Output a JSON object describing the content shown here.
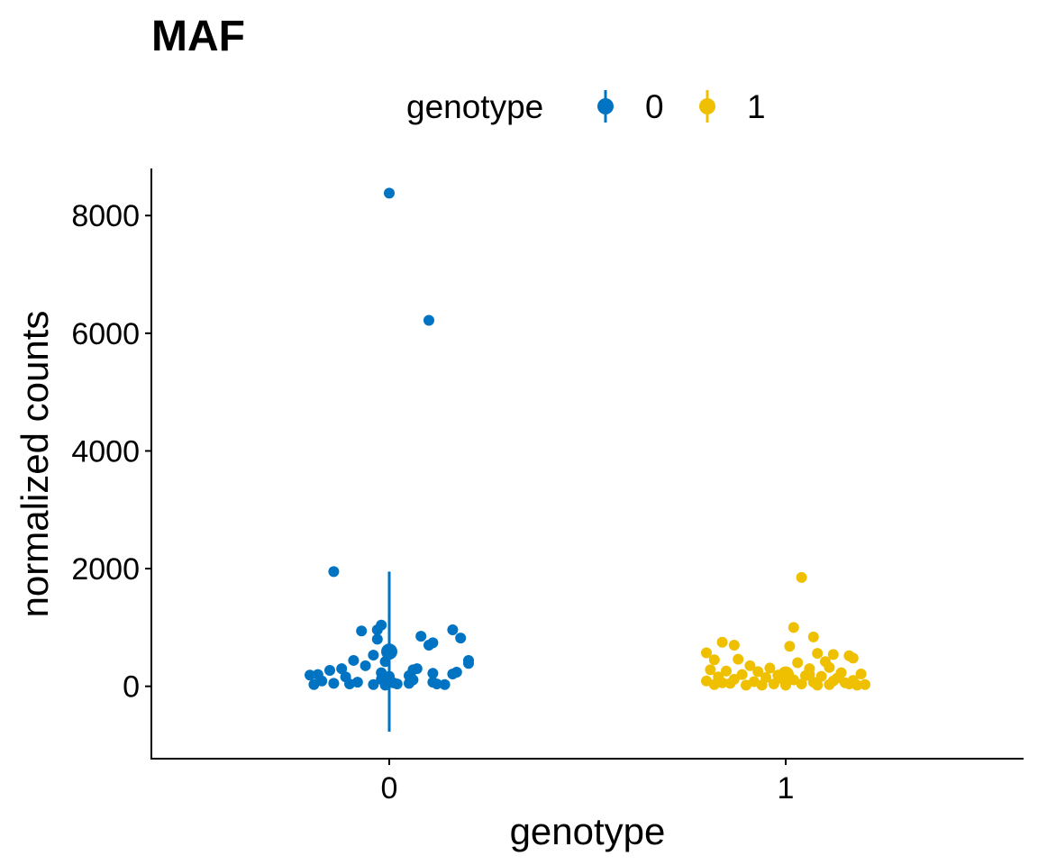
{
  "chart_data": {
    "type": "scatter",
    "title": "MAF",
    "xlabel": "genotype",
    "ylabel": "normalized counts",
    "categories": [
      "0",
      "1"
    ],
    "ylim": [
      -1230,
      8800
    ],
    "y_ticks": [
      0,
      2000,
      4000,
      6000,
      8000
    ],
    "y_tick_labels": [
      "0",
      "2000",
      "4000",
      "6000",
      "8000"
    ],
    "legend": {
      "title": "genotype",
      "position": "top",
      "entries": [
        "0",
        "1"
      ]
    },
    "grid": false,
    "colors": {
      "0": "#0073C2",
      "1": "#EFC000"
    },
    "series": [
      {
        "name": "0",
        "category": "0",
        "points": [
          {
            "dx": 0.0,
            "y": 8380
          },
          {
            "dx": 0.1,
            "y": 6220
          },
          {
            "dx": -0.14,
            "y": 1950
          },
          {
            "dx": -0.02,
            "y": 1040
          },
          {
            "dx": -0.07,
            "y": 940
          },
          {
            "dx": -0.03,
            "y": 960
          },
          {
            "dx": 0.16,
            "y": 960
          },
          {
            "dx": 0.08,
            "y": 850
          },
          {
            "dx": 0.18,
            "y": 820
          },
          {
            "dx": -0.03,
            "y": 800
          },
          {
            "dx": 0.11,
            "y": 740
          },
          {
            "dx": 0.1,
            "y": 700
          },
          {
            "dx": -0.04,
            "y": 530
          },
          {
            "dx": -0.09,
            "y": 440
          },
          {
            "dx": 0.2,
            "y": 440
          },
          {
            "dx": 0.2,
            "y": 390
          },
          {
            "dx": -0.01,
            "y": 420
          },
          {
            "dx": -0.06,
            "y": 350
          },
          {
            "dx": -0.12,
            "y": 300
          },
          {
            "dx": 0.07,
            "y": 300
          },
          {
            "dx": 0.06,
            "y": 280
          },
          {
            "dx": -0.15,
            "y": 270
          },
          {
            "dx": 0.17,
            "y": 240
          },
          {
            "dx": -0.02,
            "y": 230
          },
          {
            "dx": 0.16,
            "y": 210
          },
          {
            "dx": 0.11,
            "y": 220
          },
          {
            "dx": -0.18,
            "y": 200
          },
          {
            "dx": -0.2,
            "y": 190
          },
          {
            "dx": 0.05,
            "y": 180
          },
          {
            "dx": -0.11,
            "y": 160
          },
          {
            "dx": 0.0,
            "y": 170
          },
          {
            "dx": -0.02,
            "y": 120
          },
          {
            "dx": 0.06,
            "y": 110
          },
          {
            "dx": -0.17,
            "y": 90
          },
          {
            "dx": -0.08,
            "y": 70
          },
          {
            "dx": 0.01,
            "y": 60
          },
          {
            "dx": 0.11,
            "y": 70
          },
          {
            "dx": -0.14,
            "y": 50
          },
          {
            "dx": -0.19,
            "y": 30
          },
          {
            "dx": -0.1,
            "y": 40
          },
          {
            "dx": -0.04,
            "y": 30
          },
          {
            "dx": 0.02,
            "y": 40
          },
          {
            "dx": 0.05,
            "y": 50
          },
          {
            "dx": 0.12,
            "y": 40
          },
          {
            "dx": 0.14,
            "y": 30
          },
          {
            "dx": -0.01,
            "y": 20
          }
        ],
        "summary": {
          "mean": 590,
          "lower": -770,
          "upper": 1950
        }
      },
      {
        "name": "1",
        "category": "1",
        "points": [
          {
            "dx": 0.04,
            "y": 1850
          },
          {
            "dx": 0.02,
            "y": 1000
          },
          {
            "dx": 0.07,
            "y": 840
          },
          {
            "dx": -0.16,
            "y": 750
          },
          {
            "dx": -0.13,
            "y": 700
          },
          {
            "dx": 0.01,
            "y": 680
          },
          {
            "dx": -0.2,
            "y": 570
          },
          {
            "dx": 0.08,
            "y": 560
          },
          {
            "dx": 0.12,
            "y": 540
          },
          {
            "dx": 0.16,
            "y": 520
          },
          {
            "dx": 0.17,
            "y": 480
          },
          {
            "dx": -0.18,
            "y": 450
          },
          {
            "dx": -0.12,
            "y": 460
          },
          {
            "dx": 0.03,
            "y": 400
          },
          {
            "dx": 0.1,
            "y": 420
          },
          {
            "dx": -0.09,
            "y": 350
          },
          {
            "dx": 0.11,
            "y": 320
          },
          {
            "dx": -0.04,
            "y": 310
          },
          {
            "dx": 0.06,
            "y": 300
          },
          {
            "dx": -0.19,
            "y": 280
          },
          {
            "dx": -0.15,
            "y": 260
          },
          {
            "dx": -0.07,
            "y": 250
          },
          {
            "dx": 0.0,
            "y": 240
          },
          {
            "dx": 0.14,
            "y": 230
          },
          {
            "dx": 0.19,
            "y": 210
          },
          {
            "dx": -0.11,
            "y": 200
          },
          {
            "dx": -0.02,
            "y": 190
          },
          {
            "dx": 0.05,
            "y": 180
          },
          {
            "dx": 0.09,
            "y": 170
          },
          {
            "dx": -0.17,
            "y": 160
          },
          {
            "dx": -0.05,
            "y": 150
          },
          {
            "dx": 0.13,
            "y": 140
          },
          {
            "dx": -0.13,
            "y": 120
          },
          {
            "dx": 0.02,
            "y": 110
          },
          {
            "dx": 0.17,
            "y": 100
          },
          {
            "dx": -0.2,
            "y": 90
          },
          {
            "dx": -0.08,
            "y": 80
          },
          {
            "dx": 0.07,
            "y": 70
          },
          {
            "dx": 0.15,
            "y": 60
          },
          {
            "dx": -0.14,
            "y": 50
          },
          {
            "dx": -0.03,
            "y": 40
          },
          {
            "dx": 0.04,
            "y": 40
          },
          {
            "dx": 0.11,
            "y": 30
          },
          {
            "dx": 0.2,
            "y": 30
          },
          {
            "dx": -0.18,
            "y": 30
          },
          {
            "dx": -0.1,
            "y": 20
          },
          {
            "dx": 0.0,
            "y": 20
          },
          {
            "dx": 0.08,
            "y": 20
          },
          {
            "dx": 0.18,
            "y": 20
          },
          {
            "dx": -0.06,
            "y": 20
          },
          {
            "dx": 0.16,
            "y": 40
          },
          {
            "dx": -0.16,
            "y": 60
          },
          {
            "dx": 0.12,
            "y": 90
          },
          {
            "dx": -0.01,
            "y": 130
          },
          {
            "dx": 0.06,
            "y": 200
          }
        ],
        "summary": {
          "mean": 200,
          "lower": null,
          "upper": null
        }
      }
    ]
  }
}
